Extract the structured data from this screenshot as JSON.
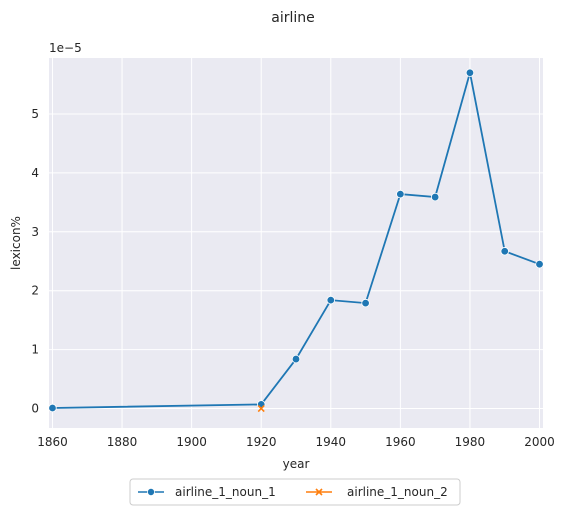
{
  "chart_data": {
    "type": "line",
    "title": "airline",
    "xlabel": "year",
    "ylabel": "lexicon%",
    "y_exponent_label": "1e−5",
    "xlim": [
      1859,
      2001
    ],
    "ylim": [
      -0.33,
      5.95
    ],
    "grid": true,
    "legend_placement": "bottom-center",
    "x_ticks": [
      1860,
      1880,
      1900,
      1920,
      1940,
      1960,
      1980,
      2000
    ],
    "y_ticks": [
      0,
      1,
      2,
      3,
      4,
      5
    ],
    "series": [
      {
        "name": "airline_1_noun_1",
        "marker": "circle",
        "color": "#1f77b4",
        "points": [
          [
            1860,
            0.01
          ],
          [
            1920,
            0.07
          ],
          [
            1930,
            0.84
          ],
          [
            1940,
            1.84
          ],
          [
            1950,
            1.79
          ],
          [
            1960,
            3.64
          ],
          [
            1970,
            3.59
          ],
          [
            1980,
            5.7
          ],
          [
            1990,
            2.67
          ],
          [
            2000,
            2.45
          ]
        ]
      },
      {
        "name": "airline_1_noun_2",
        "marker": "x",
        "color": "#ff7f0e",
        "points": [
          [
            1920,
            0.0
          ]
        ]
      }
    ]
  }
}
